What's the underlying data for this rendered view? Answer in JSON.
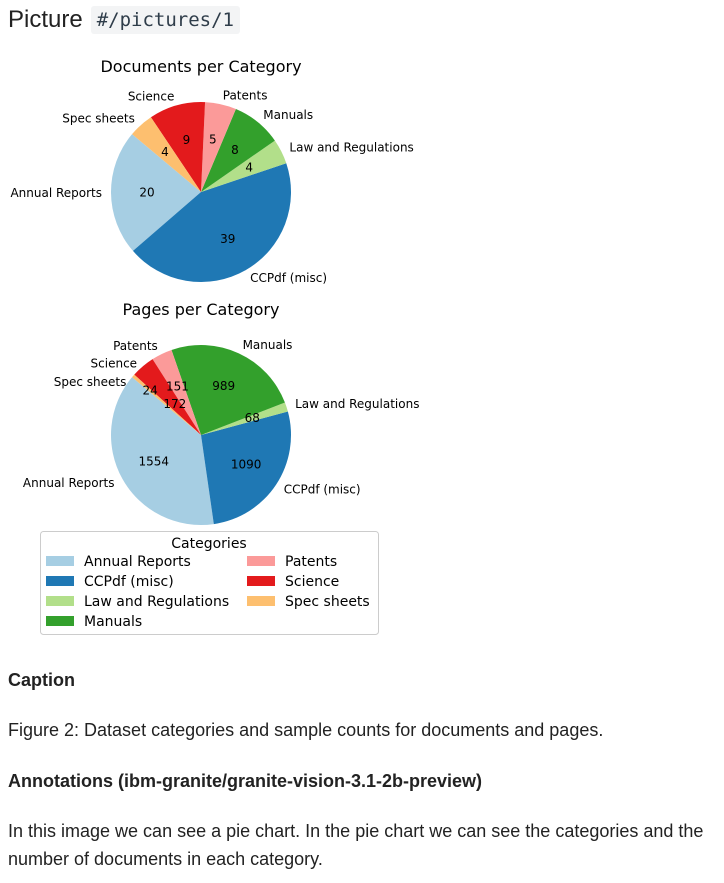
{
  "header": {
    "label": "Picture",
    "ref": "#/pictures/1"
  },
  "chart_data": [
    {
      "type": "pie",
      "title": "Documents per Category",
      "startangle": 140,
      "categories": [
        "Annual Reports",
        "CCPdf (misc)",
        "Law and Regulations",
        "Manuals",
        "Patents",
        "Science",
        "Spec sheets"
      ],
      "values": [
        20,
        39,
        4,
        8,
        5,
        9,
        4
      ]
    },
    {
      "type": "pie",
      "title": "Pages per Category",
      "startangle": 140,
      "categories": [
        "Annual Reports",
        "CCPdf (misc)",
        "Law and Regulations",
        "Manuals",
        "Patents",
        "Science",
        "Spec sheets"
      ],
      "values": [
        1554,
        1090,
        68,
        989,
        151,
        172,
        24
      ]
    }
  ],
  "colors": [
    "#a6cee3",
    "#1f78b4",
    "#b2df8a",
    "#33a02c",
    "#fb9a99",
    "#e31a1c",
    "#fdbf6f"
  ],
  "legend": {
    "title": "Categories",
    "placement": "bottom"
  },
  "caption": {
    "heading": "Caption",
    "text": "Figure 2: Dataset categories and sample counts for documents and pages."
  },
  "annotations": {
    "heading": "Annotations (ibm-granite/granite-vision-3.1-2b-preview)",
    "text": "In this image we can see a pie chart. In the pie chart we can see the categories and the number of documents in each category."
  }
}
